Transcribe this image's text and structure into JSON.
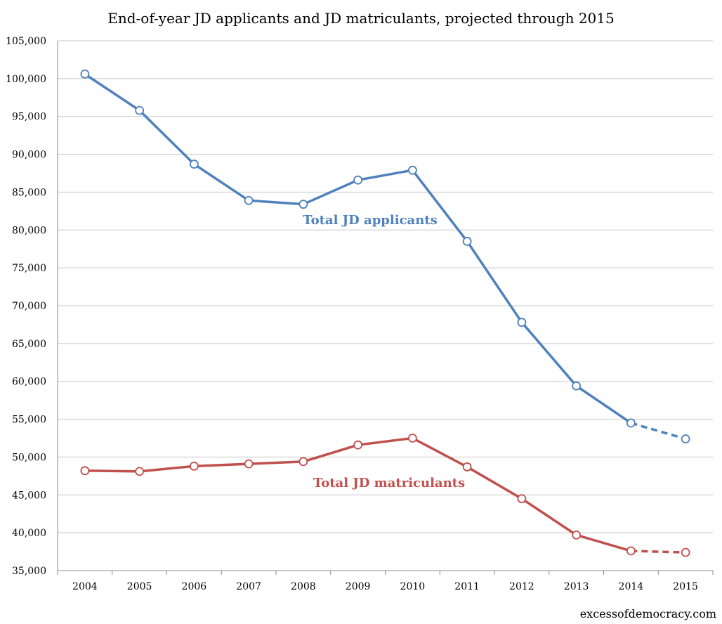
{
  "chart_data": {
    "type": "line",
    "title": "End-of-year JD applicants and JD matriculants, projected through 2015",
    "categories": [
      "2004",
      "2005",
      "2006",
      "2007",
      "2008",
      "2009",
      "2010",
      "2011",
      "2012",
      "2013",
      "2014",
      "2015"
    ],
    "ylim": [
      35000,
      105000
    ],
    "ystep": 5000,
    "ytick_labels": [
      "35,000",
      "40,000",
      "45,000",
      "50,000",
      "55,000",
      "60,000",
      "65,000",
      "70,000",
      "75,000",
      "80,000",
      "85,000",
      "90,000",
      "95,000",
      "100,000",
      "105,000"
    ],
    "series": [
      {
        "name": "Total JD applicants",
        "color": "#4f81bd",
        "values": [
          100600,
          95800,
          88700,
          83900,
          83400,
          86600,
          87900,
          78500,
          67800,
          59400,
          54500,
          52400
        ],
        "projected_from_index": 10
      },
      {
        "name": "Total JD matriculants",
        "color": "#c0504d",
        "values": [
          48200,
          48100,
          48800,
          49100,
          49400,
          51600,
          52500,
          48700,
          44500,
          39700,
          37600,
          37400
        ],
        "projected_from_index": 10
      }
    ],
    "credit": "excessofdemocracy.com"
  }
}
